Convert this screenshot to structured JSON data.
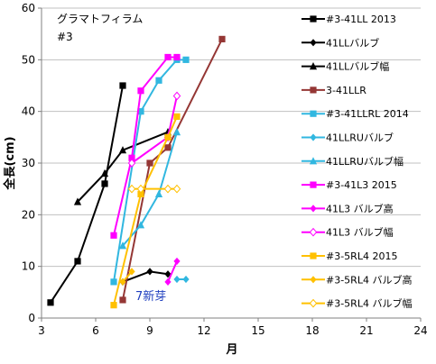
{
  "chart_data": {
    "type": "line",
    "title": "グラマトフィラム",
    "subtitle": "#3",
    "xlabel": "月",
    "ylabel": "全長(cm)",
    "xlim": [
      3,
      24
    ],
    "ylim": [
      0,
      60
    ],
    "xticks": [
      3,
      6,
      9,
      12,
      15,
      18,
      21,
      24
    ],
    "yticks": [
      0,
      10,
      20,
      30,
      40,
      50,
      60
    ],
    "grid": "horizontal",
    "legend_position": "right",
    "annotations": [
      {
        "text": "7新芽",
        "x": 8.2,
        "y": 3.5
      }
    ],
    "series": [
      {
        "name": "#3-41LL 2013",
        "color": "#000000",
        "marker": "square",
        "points": [
          [
            3.5,
            3
          ],
          [
            5.0,
            11
          ],
          [
            6.5,
            26
          ],
          [
            7.5,
            45
          ]
        ]
      },
      {
        "name": "41LLバルブ",
        "color": "#000000",
        "marker": "diamond",
        "points": [
          [
            7.5,
            7
          ],
          [
            9.0,
            9
          ],
          [
            10.0,
            8.5
          ]
        ]
      },
      {
        "name": "41LLバルブ幅",
        "color": "#000000",
        "marker": "triangle",
        "points": [
          [
            5.0,
            22.5
          ],
          [
            6.5,
            28
          ],
          [
            7.5,
            32.5
          ],
          [
            10.0,
            36
          ]
        ]
      },
      {
        "name": "3-41LLR",
        "color": "#953735",
        "marker": "square",
        "points": [
          [
            7.5,
            3.5
          ],
          [
            9.0,
            30
          ],
          [
            10.0,
            33
          ],
          [
            13.0,
            54
          ]
        ]
      },
      {
        "name": "#3-41LLRL 2014",
        "color": "#31b7e0",
        "marker": "square",
        "points": [
          [
            7.0,
            7
          ],
          [
            8.5,
            40
          ],
          [
            9.5,
            46
          ],
          [
            10.5,
            50
          ],
          [
            11.0,
            50
          ]
        ]
      },
      {
        "name": "41LLRUバルブ",
        "color": "#31b7e0",
        "marker": "diamond",
        "points": [
          [
            10.5,
            7.5
          ],
          [
            11.0,
            7.5
          ]
        ]
      },
      {
        "name": "41LLRUバルブ幅",
        "color": "#31b7e0",
        "marker": "triangle",
        "points": [
          [
            7.5,
            14
          ],
          [
            8.5,
            18
          ],
          [
            9.5,
            24
          ],
          [
            10.5,
            36
          ]
        ]
      },
      {
        "name": "#3-41L3 2015",
        "color": "#ff00ff",
        "marker": "square",
        "points": [
          [
            7.0,
            16
          ],
          [
            8.0,
            31
          ],
          [
            8.5,
            44
          ],
          [
            10.0,
            50.5
          ],
          [
            10.5,
            50.5
          ]
        ]
      },
      {
        "name": "41L3 バルブ高",
        "color": "#ff00ff",
        "marker": "diamond",
        "points": [
          [
            10.0,
            7
          ],
          [
            10.5,
            11
          ]
        ]
      },
      {
        "name": "41L3 バルブ幅",
        "color": "#ff00ff",
        "marker": "diamond-open",
        "points": [
          [
            8.0,
            30
          ],
          [
            10.0,
            35
          ],
          [
            10.5,
            43
          ]
        ]
      },
      {
        "name": "#3-5RL4 2015",
        "color": "#ffc000",
        "marker": "square",
        "points": [
          [
            7.0,
            2.5
          ],
          [
            8.5,
            24
          ],
          [
            10.0,
            35
          ],
          [
            10.5,
            39
          ]
        ]
      },
      {
        "name": "#3-5RL4 バルブ高",
        "color": "#ffc000",
        "marker": "diamond",
        "points": [
          [
            7.5,
            7
          ],
          [
            8.0,
            9
          ]
        ]
      },
      {
        "name": "#3-5RL4 バルブ幅",
        "color": "#ffc000",
        "marker": "diamond-open",
        "points": [
          [
            8.0,
            25
          ],
          [
            8.5,
            25
          ],
          [
            10.0,
            25
          ],
          [
            10.5,
            25
          ]
        ]
      }
    ]
  }
}
